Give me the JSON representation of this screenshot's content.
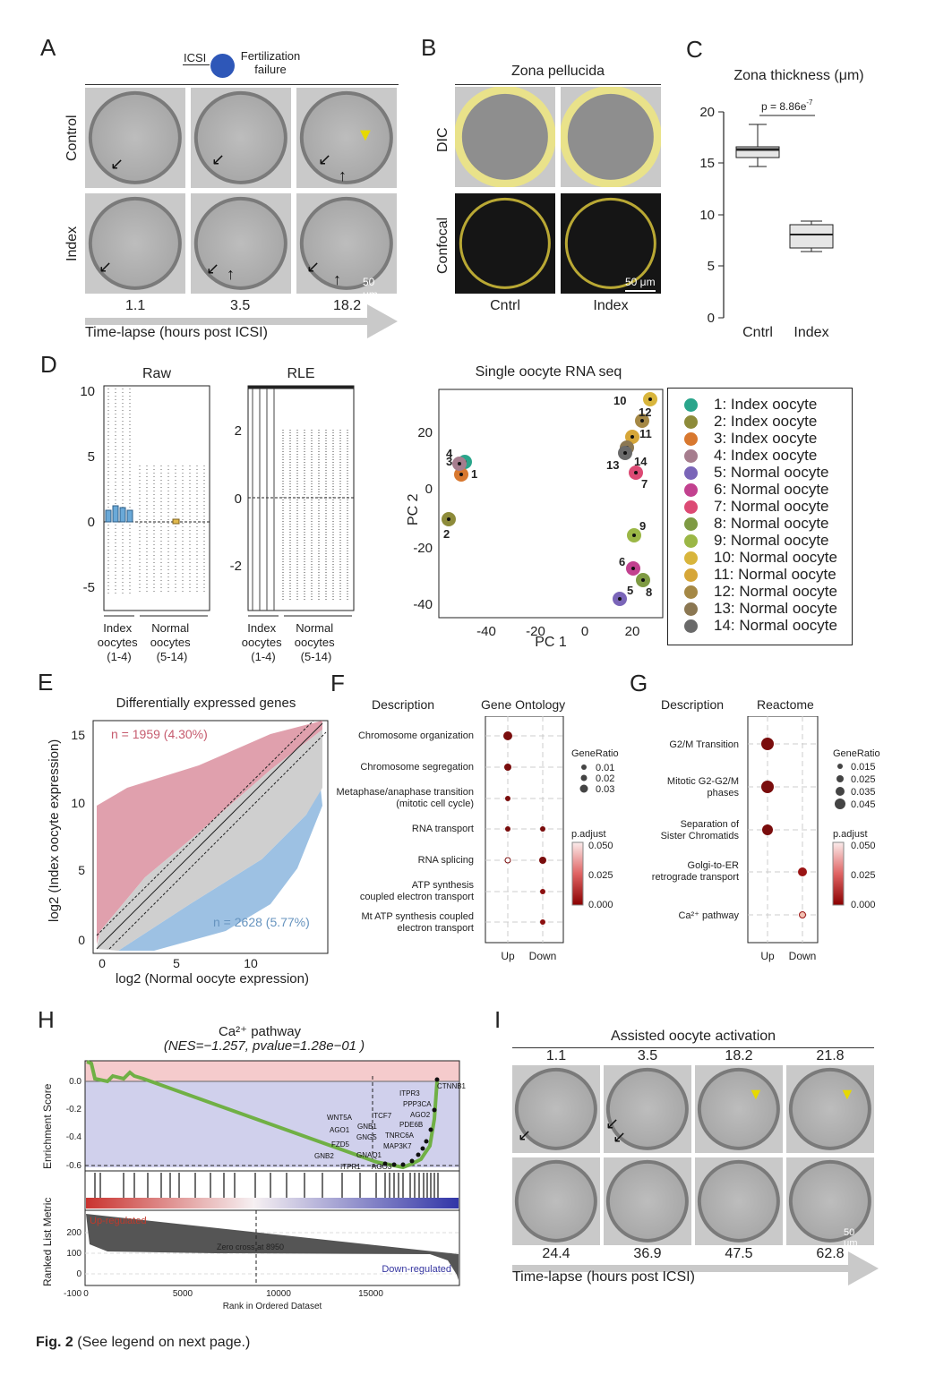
{
  "panels": {
    "a": "A",
    "b": "B",
    "c": "C",
    "d": "D",
    "e": "E",
    "f": "F",
    "g": "G",
    "h": "H",
    "i": "I"
  },
  "panelA": {
    "icsi": "ICSI",
    "failure_1": "Fertilization",
    "failure_2": "failure",
    "row_labels": [
      "Control",
      "Index"
    ],
    "times": [
      "1.1",
      "3.5",
      "18.2"
    ],
    "scale": "50 μm",
    "axis": "Time-lapse (hours post ICSI)"
  },
  "panelB": {
    "title": "Zona pellucida",
    "rows": [
      "DIC",
      "Confocal"
    ],
    "cols": [
      "Cntrl",
      "Index"
    ],
    "scale": "50 μm"
  },
  "panelC": {
    "title": "Zona thickness (μm)",
    "pvalue": "p = 8.86e",
    "pexp": "-7",
    "groups": [
      "Cntrl",
      "Index"
    ],
    "yticks": [
      "0",
      "5",
      "10",
      "15",
      "20"
    ]
  },
  "panelD": {
    "raw_title": "Raw",
    "rle_title": "RLE",
    "pca_title": "Single oocyte RNA seq",
    "raw_yticks": [
      "10",
      "5",
      "0",
      "-5"
    ],
    "rle_yticks": [
      "2",
      "0",
      "-2"
    ],
    "index_label": [
      "Index",
      "oocytes",
      "(1-4)"
    ],
    "normal_label": [
      "Normal",
      "oocytes",
      "(5-14)"
    ],
    "pc1": "PC 1",
    "pc2": "PC 2",
    "pc1_ticks": [
      "-40",
      "-20",
      "0",
      "20"
    ],
    "pc2_ticks": [
      "20",
      "0",
      "-20",
      "-40"
    ],
    "legend": [
      {
        "label": "1: Index oocyte",
        "color": "#2aa58b"
      },
      {
        "label": "2: Index oocyte",
        "color": "#8d8b3a"
      },
      {
        "label": "3: Index oocyte",
        "color": "#d8782f"
      },
      {
        "label": "4: Index oocyte",
        "color": "#a67d8e"
      },
      {
        "label": "5: Normal oocyte",
        "color": "#7a65b8"
      },
      {
        "label": "6: Normal oocyte",
        "color": "#c2418f"
      },
      {
        "label": "7: Normal oocyte",
        "color": "#dc4a74"
      },
      {
        "label": "8: Normal oocyte",
        "color": "#7e9a43"
      },
      {
        "label": "9: Normal oocyte",
        "color": "#9bb746"
      },
      {
        "label": "10: Normal oocyte",
        "color": "#d8b53c"
      },
      {
        "label": "11: Normal oocyte",
        "color": "#d6a638"
      },
      {
        "label": "12: Normal oocyte",
        "color": "#a58845"
      },
      {
        "label": "13: Normal oocyte",
        "color": "#8b7752"
      },
      {
        "label": "14: Normal oocyte",
        "color": "#6a6a6a"
      }
    ]
  },
  "panelE": {
    "title": "Differentially expressed genes",
    "up": "n = 1959 (4.30%)",
    "down": "n = 2628 (5.77%)",
    "xlabel": "log2 (Normal oocyte expression)",
    "ylabel": "log2 (Index oocyte expression)",
    "xticks": [
      "0",
      "5",
      "10"
    ],
    "yticks": [
      "0",
      "5",
      "10",
      "15"
    ]
  },
  "panelF": {
    "desc": "Description",
    "title": "Gene Ontology",
    "terms": [
      [
        "Chromosome organization"
      ],
      [
        "Chromosome segregation"
      ],
      [
        "Metaphase/anaphase transition",
        "(mitotic cell cycle)"
      ],
      [
        "RNA transport"
      ],
      [
        "RNA splicing"
      ],
      [
        "ATP synthesis",
        "coupled electron transport"
      ],
      [
        "Mt ATP synthesis coupled",
        "electron transport"
      ]
    ],
    "generatio": "GeneRatio",
    "gr": [
      "0.01",
      "0.02",
      "0.03"
    ],
    "padj": "p.adjust",
    "pv": [
      "0.050",
      "0.025",
      "0.000"
    ],
    "x": [
      "Up",
      "Down"
    ]
  },
  "panelG": {
    "desc": "Description",
    "title": "Reactome",
    "terms": [
      [
        "G2/M Transition"
      ],
      [
        "Mitotic G2-G2/M",
        "phases"
      ],
      [
        "Separation of",
        "Sister Chromatids"
      ],
      [
        "Golgi-to-ER",
        "retrograde transport"
      ],
      [
        "Ca²⁺ pathway"
      ]
    ],
    "generatio": "GeneRatio",
    "gr": [
      "0.015",
      "0.025",
      "0.035",
      "0.045"
    ],
    "padj": "p.adjust",
    "pv": [
      "0.050",
      "0.025",
      "0.000"
    ],
    "x": [
      "Up",
      "Down"
    ]
  },
  "panelH": {
    "title": "Ca²⁺ pathway",
    "subtitle": "(NES=−1.257, pvalue=1.28e−01 )",
    "es_label": "Enrichment Score",
    "rank_label": "Ranked List Metric",
    "es_ticks": [
      "0.0",
      "-0.2",
      "-0.4",
      "-0.6"
    ],
    "rank_ticks": [
      "200",
      "100",
      "0",
      "-100"
    ],
    "xticks": [
      "0",
      "5000",
      "10000",
      "15000"
    ],
    "xlabel": "Rank in Ordered Dataset",
    "up": "Up-regulated",
    "down": "Down-regulated",
    "zero": "Zero cross at 8950",
    "genes": [
      "CTNNB1",
      "ITPR3",
      "PPP3CA",
      "AGO2",
      "PDE6B",
      "TNRC6A",
      "MAP3K7",
      "ITCF7",
      "GNB1",
      "GNG5",
      "GNAQ1",
      "GNB2",
      "WNT5A",
      "AGO1",
      "FZD5",
      "ITPR1",
      "AGO3"
    ]
  },
  "panelI": {
    "title": "Assisted oocyte activation",
    "times_top": [
      "1.1",
      "3.5",
      "18.2",
      "21.8"
    ],
    "times_bottom": [
      "24.4",
      "36.9",
      "47.5",
      "62.8"
    ],
    "scale": "50 μm",
    "axis": "Time-lapse (hours post ICSI)"
  },
  "caption": {
    "bold": "Fig. 2",
    "text": "(See legend on next page.)"
  }
}
